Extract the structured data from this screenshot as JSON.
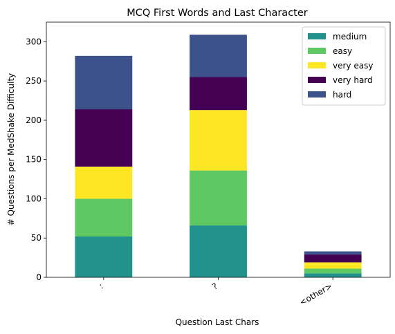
{
  "chart_data": {
    "type": "bar",
    "stacked": true,
    "title": "MCQ First Words and Last Character",
    "xlabel": "Question Last Chars",
    "ylabel": "# Questions per MedShake Difficulty",
    "categories": [
      ":",
      "?",
      "<other>"
    ],
    "ylim": [
      0,
      325
    ],
    "yticks": [
      0,
      50,
      100,
      150,
      200,
      250,
      300
    ],
    "grid": false,
    "legend_position": "top-right",
    "series": [
      {
        "name": "medium",
        "color": "#21918c",
        "values": [
          52,
          66,
          5
        ]
      },
      {
        "name": "easy",
        "color": "#5ec962",
        "values": [
          48,
          70,
          6
        ]
      },
      {
        "name": "very easy",
        "color": "#fde725",
        "values": [
          41,
          77,
          8
        ]
      },
      {
        "name": "very hard",
        "color": "#440154",
        "values": [
          73,
          42,
          10
        ]
      },
      {
        "name": "hard",
        "color": "#3b528b",
        "values": [
          68,
          54,
          4
        ]
      }
    ]
  }
}
